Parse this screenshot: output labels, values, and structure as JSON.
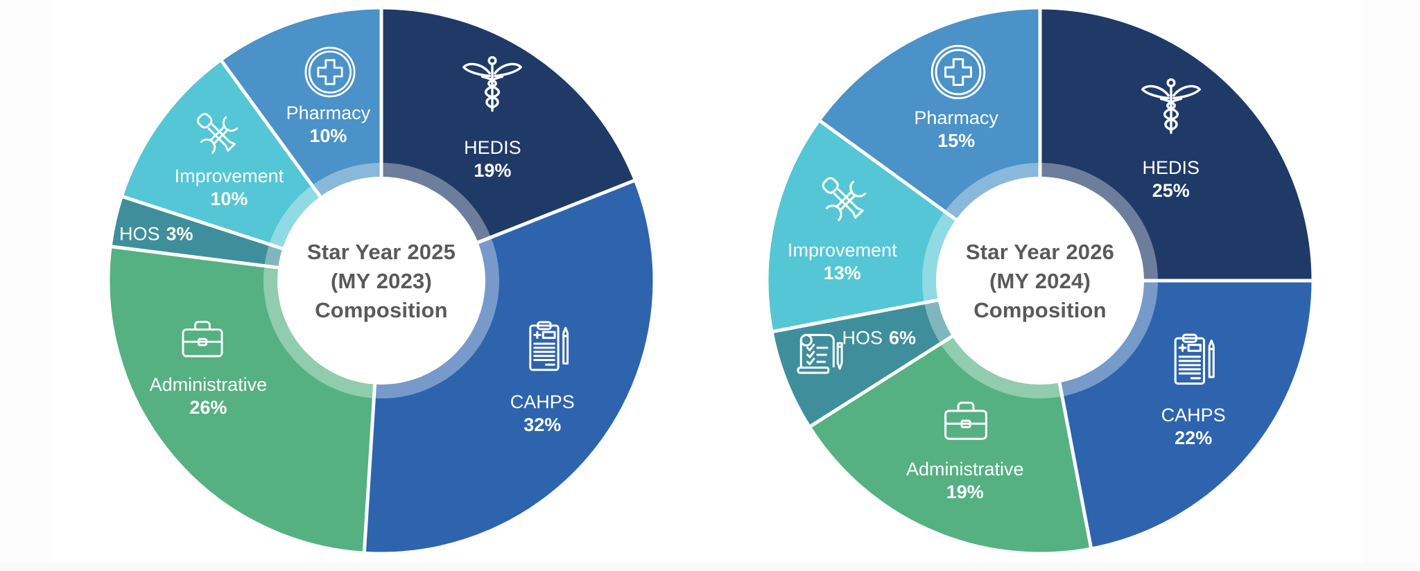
{
  "page": {
    "background": "#ffffff",
    "margin_color": "#fcfcfc",
    "center_text_color": "#595959",
    "divider_color": "#ffffff"
  },
  "chart_data": [
    {
      "type": "pie",
      "subtype": "donut",
      "title": "Star Year 2025 (MY 2023) Composition",
      "center_label_lines": [
        "Star Year 2025",
        "(MY 2023)",
        "Composition"
      ],
      "unit": "%",
      "start_angle_deg": 0,
      "direction": "clockwise",
      "legend_position": "labels-inside-slices",
      "categories": [
        "HEDIS",
        "CAHPS",
        "Administrative",
        "HOS",
        "Improvement",
        "Pharmacy"
      ],
      "values": [
        19,
        32,
        26,
        3,
        10,
        10
      ],
      "segments": [
        {
          "label": "HEDIS",
          "value": 19,
          "pct": "19%",
          "color": "#1F3A67",
          "icon": "caduceus-icon",
          "icon_size": 96,
          "icon_pos": {
            "x": 70.3,
            "y": 14.3
          },
          "label_pos": {
            "x": 70.3,
            "y": 27.8
          },
          "label_layout": "stacked"
        },
        {
          "label": "CAHPS",
          "value": 32,
          "pct": "32%",
          "color": "#2E64AE",
          "icon": "clipboard-survey-icon",
          "icon_size": 84,
          "icon_pos": {
            "x": 80.4,
            "y": 62.2
          },
          "label_pos": {
            "x": 79.4,
            "y": 74.3
          },
          "label_layout": "stacked"
        },
        {
          "label": "Administrative",
          "value": 26,
          "pct": "26%",
          "color": "#55B181",
          "icon": "briefcase-icon",
          "icon_size": 80,
          "icon_pos": {
            "x": 17.3,
            "y": 60.8
          },
          "label_pos": {
            "x": 18.4,
            "y": 71.1
          },
          "label_layout": "stacked"
        },
        {
          "label": "HOS",
          "value": 3,
          "pct": "3%",
          "color": "#3E8F9B",
          "icon": null,
          "icon_size": 0,
          "icon_pos": null,
          "label_pos": {
            "x": 8.9,
            "y": 41.5
          },
          "label_layout": "inline"
        },
        {
          "label": "Improvement",
          "value": 10,
          "pct": "10%",
          "color": "#55C6D5",
          "icon": "tools-icon",
          "icon_size": 80,
          "icon_pos": {
            "x": 20.4,
            "y": 23.4
          },
          "label_pos": {
            "x": 22.2,
            "y": 33.0
          },
          "label_layout": "stacked"
        },
        {
          "label": "Pharmacy",
          "value": 10,
          "pct": "10%",
          "color": "#4A92C7",
          "icon": "medical-cross-icon",
          "icon_size": 78,
          "icon_pos": {
            "x": 40.6,
            "y": 11.9
          },
          "label_pos": {
            "x": 40.3,
            "y": 21.5
          },
          "label_layout": "stacked"
        }
      ]
    },
    {
      "type": "pie",
      "subtype": "donut",
      "title": "Star Year 2026 (MY 2024) Composition",
      "center_label_lines": [
        "Star Year 2026",
        "(MY 2024)",
        "Composition"
      ],
      "unit": "%",
      "start_angle_deg": 0,
      "direction": "clockwise",
      "legend_position": "labels-inside-slices",
      "categories": [
        "HEDIS",
        "CAHPS",
        "Administrative",
        "HOS",
        "Improvement",
        "Pharmacy"
      ],
      "values": [
        25,
        22,
        19,
        6,
        13,
        15
      ],
      "segments": [
        {
          "label": "HEDIS",
          "value": 25,
          "pct": "25%",
          "color": "#1F3A67",
          "icon": "caduceus-icon",
          "icon_size": 96,
          "icon_pos": {
            "x": 73.9,
            "y": 18.4
          },
          "label_pos": {
            "x": 73.9,
            "y": 31.5
          },
          "label_layout": "stacked"
        },
        {
          "label": "CAHPS",
          "value": 22,
          "pct": "22%",
          "color": "#2E64AE",
          "icon": "clipboard-survey-icon",
          "icon_size": 86,
          "icon_pos": {
            "x": 78.0,
            "y": 64.6
          },
          "label_pos": {
            "x": 78.0,
            "y": 76.7
          },
          "label_layout": "stacked"
        },
        {
          "label": "Administrative",
          "value": 19,
          "pct": "19%",
          "color": "#55B181",
          "icon": "briefcase-icon",
          "icon_size": 84,
          "icon_pos": {
            "x": 36.5,
            "y": 75.7
          },
          "label_pos": {
            "x": 36.3,
            "y": 86.6
          },
          "label_layout": "stacked"
        },
        {
          "label": "HOS",
          "value": 6,
          "pct": "6%",
          "color": "#3E8F9B",
          "icon": "scroll-checklist-icon",
          "icon_size": 84,
          "icon_pos": {
            "x": 9.9,
            "y": 63.5
          },
          "label_pos": {
            "x": 20.6,
            "y": 60.5
          },
          "label_layout": "inline"
        },
        {
          "label": "Improvement",
          "value": 13,
          "pct": "13%",
          "color": "#55C6D5",
          "icon": "tools-icon",
          "icon_size": 86,
          "icon_pos": {
            "x": 14.6,
            "y": 35.4
          },
          "label_pos": {
            "x": 13.9,
            "y": 46.6
          },
          "label_layout": "stacked"
        },
        {
          "label": "Pharmacy",
          "value": 15,
          "pct": "15%",
          "color": "#4A92C7",
          "icon": "medical-cross-icon",
          "icon_size": 84,
          "icon_pos": {
            "x": 35.1,
            "y": 11.9
          },
          "label_pos": {
            "x": 34.7,
            "y": 22.4
          },
          "label_layout": "stacked"
        }
      ]
    }
  ]
}
